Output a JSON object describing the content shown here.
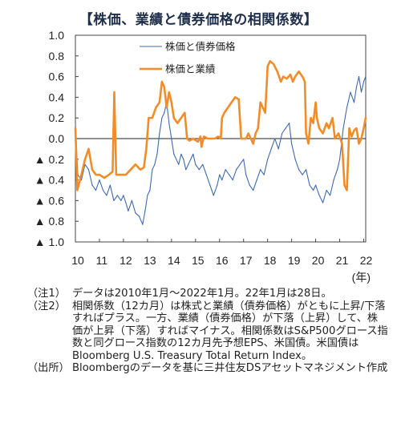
{
  "title": "【株価、業績と債券価格の相関係数】",
  "chart_data": {
    "type": "line",
    "title": "【株価、業績と債券価格の相関係数】",
    "x_unit": "(年)",
    "xlim": [
      2010.0,
      2022.083
    ],
    "ylim": [
      -1.0,
      1.0
    ],
    "y_ticks": [
      1.0,
      0.8,
      0.6,
      0.4,
      0.2,
      0.0,
      -0.2,
      -0.4,
      -0.6,
      -0.8,
      -1.0
    ],
    "y_tick_labels": [
      "1.0",
      "0.8",
      "0.6",
      "0.4",
      "0.2",
      "0.0",
      "▲ 0.2",
      "▲ 0.4",
      "▲ 0.6",
      "▲ 0.8",
      "▲ 1.0"
    ],
    "x_ticks": [
      2010,
      2011,
      2012,
      2013,
      2014,
      2015,
      2016,
      2017,
      2018,
      2019,
      2020,
      2021,
      2022
    ],
    "x_tick_labels": [
      "10",
      "11",
      "12",
      "13",
      "14",
      "15",
      "16",
      "17",
      "18",
      "19",
      "20",
      "21",
      "22"
    ],
    "zero_line": true,
    "grid": false,
    "legend_position": "top-center",
    "series": [
      {
        "name": "株価と債券価格",
        "color": "#3f6ab0",
        "points": [
          [
            2010.0,
            0.15
          ],
          [
            2010.1,
            -0.35
          ],
          [
            2010.25,
            -0.4
          ],
          [
            2010.4,
            -0.25
          ],
          [
            2010.55,
            -0.3
          ],
          [
            2010.7,
            -0.45
          ],
          [
            2010.85,
            -0.5
          ],
          [
            2011.0,
            -0.4
          ],
          [
            2011.15,
            -0.5
          ],
          [
            2011.3,
            -0.55
          ],
          [
            2011.45,
            -0.45
          ],
          [
            2011.6,
            -0.6
          ],
          [
            2011.75,
            -0.55
          ],
          [
            2011.9,
            -0.6
          ],
          [
            2012.0,
            -0.55
          ],
          [
            2012.1,
            -0.62
          ],
          [
            2012.2,
            -0.7
          ],
          [
            2012.35,
            -0.6
          ],
          [
            2012.5,
            -0.72
          ],
          [
            2012.65,
            -0.75
          ],
          [
            2012.8,
            -0.83
          ],
          [
            2012.9,
            -0.7
          ],
          [
            2013.0,
            -0.55
          ],
          [
            2013.1,
            -0.5
          ],
          [
            2013.2,
            -0.3
          ],
          [
            2013.3,
            -0.25
          ],
          [
            2013.4,
            -0.15
          ],
          [
            2013.5,
            0.05
          ],
          [
            2013.6,
            0.2
          ],
          [
            2013.7,
            0.25
          ],
          [
            2013.8,
            0.35
          ],
          [
            2013.9,
            0.15
          ],
          [
            2014.0,
            0.0
          ],
          [
            2014.1,
            -0.15
          ],
          [
            2014.2,
            -0.2
          ],
          [
            2014.3,
            -0.25
          ],
          [
            2014.4,
            -0.15
          ],
          [
            2014.5,
            -0.2
          ],
          [
            2014.6,
            -0.3
          ],
          [
            2014.7,
            -0.25
          ],
          [
            2014.8,
            -0.2
          ],
          [
            2014.9,
            -0.15
          ],
          [
            2015.0,
            -0.25
          ],
          [
            2015.15,
            -0.3
          ],
          [
            2015.3,
            -0.25
          ],
          [
            2015.45,
            -0.35
          ],
          [
            2015.6,
            -0.45
          ],
          [
            2015.75,
            -0.55
          ],
          [
            2015.9,
            -0.45
          ],
          [
            2016.0,
            -0.35
          ],
          [
            2016.1,
            -0.4
          ],
          [
            2016.25,
            -0.3
          ],
          [
            2016.4,
            -0.35
          ],
          [
            2016.55,
            -0.4
          ],
          [
            2016.7,
            -0.3
          ],
          [
            2016.85,
            -0.25
          ],
          [
            2017.0,
            -0.2
          ],
          [
            2017.1,
            -0.35
          ],
          [
            2017.25,
            -0.45
          ],
          [
            2017.4,
            -0.5
          ],
          [
            2017.55,
            -0.4
          ],
          [
            2017.7,
            -0.3
          ],
          [
            2017.85,
            -0.35
          ],
          [
            2018.0,
            -0.2
          ],
          [
            2018.15,
            -0.1
          ],
          [
            2018.3,
            0.0
          ],
          [
            2018.45,
            -0.1
          ],
          [
            2018.6,
            0.05
          ],
          [
            2018.75,
            0.1
          ],
          [
            2018.9,
            0.15
          ],
          [
            2019.0,
            -0.05
          ],
          [
            2019.15,
            -0.2
          ],
          [
            2019.3,
            -0.3
          ],
          [
            2019.45,
            -0.35
          ],
          [
            2019.6,
            -0.3
          ],
          [
            2019.75,
            -0.45
          ],
          [
            2019.9,
            -0.5
          ],
          [
            2020.0,
            -0.45
          ],
          [
            2020.15,
            -0.55
          ],
          [
            2020.3,
            -0.62
          ],
          [
            2020.45,
            -0.5
          ],
          [
            2020.6,
            -0.55
          ],
          [
            2020.75,
            -0.4
          ],
          [
            2020.9,
            -0.3
          ],
          [
            2021.0,
            -0.2
          ],
          [
            2021.15,
            0.1
          ],
          [
            2021.3,
            0.3
          ],
          [
            2021.45,
            0.45
          ],
          [
            2021.6,
            0.35
          ],
          [
            2021.7,
            0.5
          ],
          [
            2021.8,
            0.6
          ],
          [
            2021.9,
            0.45
          ],
          [
            2022.0,
            0.55
          ],
          [
            2022.08,
            0.6
          ]
        ]
      },
      {
        "name": "株価と業績",
        "color": "#f28c28",
        "points": [
          [
            2010.0,
            0.1
          ],
          [
            2010.08,
            -0.5
          ],
          [
            2010.25,
            -0.35
          ],
          [
            2010.4,
            -0.2
          ],
          [
            2010.55,
            -0.1
          ],
          [
            2010.7,
            -0.3
          ],
          [
            2010.85,
            -0.35
          ],
          [
            2011.0,
            -0.35
          ],
          [
            2011.2,
            -0.38
          ],
          [
            2011.4,
            -0.35
          ],
          [
            2011.55,
            -0.32
          ],
          [
            2011.62,
            0.45
          ],
          [
            2011.7,
            -0.35
          ],
          [
            2011.9,
            -0.35
          ],
          [
            2012.1,
            -0.35
          ],
          [
            2012.3,
            -0.3
          ],
          [
            2012.5,
            -0.25
          ],
          [
            2012.7,
            -0.3
          ],
          [
            2012.85,
            -0.28
          ],
          [
            2012.95,
            -0.1
          ],
          [
            2013.05,
            0.2
          ],
          [
            2013.2,
            0.2
          ],
          [
            2013.35,
            0.3
          ],
          [
            2013.5,
            0.35
          ],
          [
            2013.6,
            0.55
          ],
          [
            2013.7,
            0.5
          ],
          [
            2013.8,
            0.3
          ],
          [
            2013.9,
            0.45
          ],
          [
            2014.0,
            0.35
          ],
          [
            2014.1,
            0.2
          ],
          [
            2014.25,
            0.15
          ],
          [
            2014.4,
            0.2
          ],
          [
            2014.55,
            0.25
          ],
          [
            2014.65,
            0.0
          ],
          [
            2014.75,
            -0.02
          ],
          [
            2014.9,
            0.0
          ],
          [
            2015.1,
            -0.03
          ],
          [
            2015.2,
            0.02
          ],
          [
            2015.25,
            -0.08
          ],
          [
            2015.35,
            0.02
          ],
          [
            2015.5,
            0.0
          ],
          [
            2015.65,
            0.0
          ],
          [
            2015.8,
            0.0
          ],
          [
            2015.95,
            0.02
          ],
          [
            2016.05,
            0.0
          ],
          [
            2016.1,
            0.2
          ],
          [
            2016.2,
            0.25
          ],
          [
            2016.35,
            0.3
          ],
          [
            2016.5,
            0.35
          ],
          [
            2016.65,
            0.4
          ],
          [
            2016.8,
            0.38
          ],
          [
            2016.9,
            0.0
          ],
          [
            2017.1,
            0.0
          ],
          [
            2017.2,
            0.05
          ],
          [
            2017.3,
            0.0
          ],
          [
            2017.4,
            -0.05
          ],
          [
            2017.5,
            0.05
          ],
          [
            2017.6,
            0.1
          ],
          [
            2017.7,
            0.35
          ],
          [
            2017.8,
            0.3
          ],
          [
            2017.9,
            0.25
          ],
          [
            2018.0,
            0.7
          ],
          [
            2018.1,
            0.75
          ],
          [
            2018.25,
            0.72
          ],
          [
            2018.4,
            0.65
          ],
          [
            2018.55,
            0.55
          ],
          [
            2018.65,
            0.6
          ],
          [
            2018.8,
            0.58
          ],
          [
            2018.95,
            0.62
          ],
          [
            2019.05,
            0.55
          ],
          [
            2019.15,
            0.6
          ],
          [
            2019.3,
            0.65
          ],
          [
            2019.45,
            0.6
          ],
          [
            2019.55,
            0.55
          ],
          [
            2019.6,
            0.05
          ],
          [
            2019.7,
            -0.05
          ],
          [
            2019.8,
            0.2
          ],
          [
            2019.9,
            0.15
          ],
          [
            2020.0,
            0.35
          ],
          [
            2020.05,
            0.2
          ],
          [
            2020.15,
            0.1
          ],
          [
            2020.3,
            0.05
          ],
          [
            2020.45,
            0.15
          ],
          [
            2020.55,
            0.1
          ],
          [
            2020.7,
            0.2
          ],
          [
            2020.8,
            0.0
          ],
          [
            2020.95,
            0.05
          ],
          [
            2021.1,
            -0.05
          ],
          [
            2021.2,
            -0.45
          ],
          [
            2021.3,
            -0.5
          ],
          [
            2021.4,
            0.1
          ],
          [
            2021.5,
            0.02
          ],
          [
            2021.6,
            0.08
          ],
          [
            2021.7,
            0.1
          ],
          [
            2021.8,
            -0.05
          ],
          [
            2021.9,
            0.0
          ],
          [
            2022.0,
            0.1
          ],
          [
            2022.08,
            0.2
          ]
        ]
      }
    ]
  },
  "notes": [
    {
      "label": "（注1）",
      "text": "データは2010年1月～2022年1月。22年1月は28日。"
    },
    {
      "label": "（注2）",
      "text": "相関係数（12カ月）は株式と業績（債券価格）がともに上昇/下落すればプラス。一方、業績（債券価格）が下落（上昇）して、株価が上昇（下落）すればマイナス。相関係数はS&P500グロース指数と同グロース指数の12カ月先予想EPS、米国債。米国債はBloomberg U.S. Treasury Total Return Index。"
    },
    {
      "label": "（出所）",
      "text": "Bloombergのデータを基に三井住友DSアセットマネジメント作成"
    }
  ]
}
